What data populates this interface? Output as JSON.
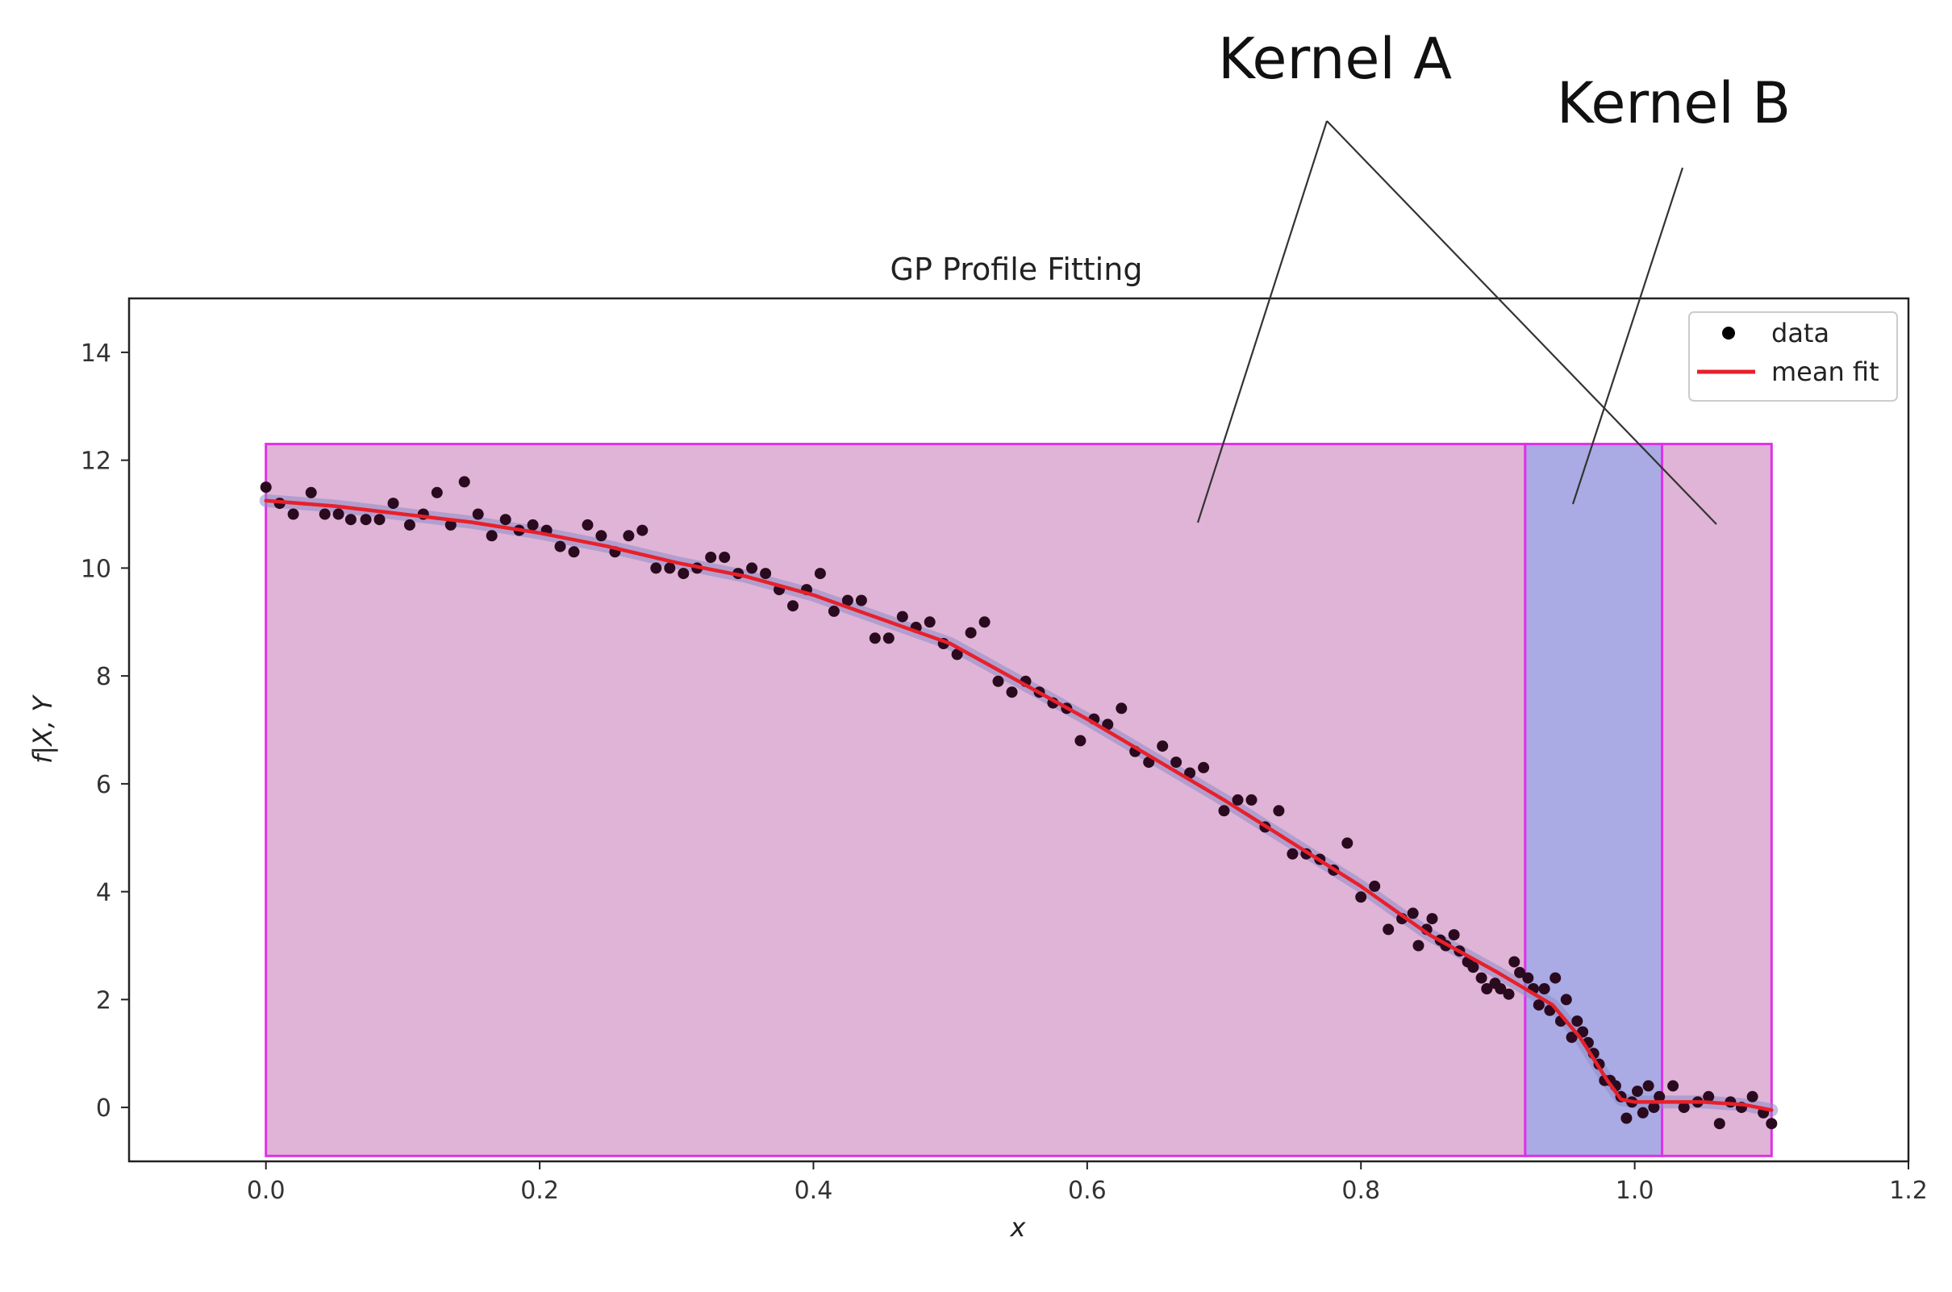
{
  "annotations": [
    {
      "label": "Kernel A"
    },
    {
      "label": "Kernel B"
    }
  ],
  "chart_data": {
    "type": "scatter",
    "title": "GP Profile Fitting",
    "xlabel": "x",
    "ylabel": "f|X, Y",
    "xlim": [
      -0.1,
      1.2
    ],
    "ylim": [
      -1,
      15
    ],
    "xticks": [
      0.0,
      0.2,
      0.4,
      0.6,
      0.8,
      1.0,
      1.2
    ],
    "xtick_labels": [
      "0.0",
      "0.2",
      "0.4",
      "0.6",
      "0.8",
      "1.0",
      "1.2"
    ],
    "yticks": [
      0,
      2,
      4,
      6,
      8,
      10,
      12,
      14
    ],
    "ytick_labels": [
      "0",
      "2",
      "4",
      "6",
      "8",
      "10",
      "12",
      "14"
    ],
    "grid": false,
    "legend_position": "top-right",
    "legend": [
      {
        "label": "data",
        "marker": "dot",
        "color": "#000000"
      },
      {
        "label": "mean fit",
        "marker": "line",
        "color": "#e8202a"
      }
    ],
    "regions": [
      {
        "x0": 0.0,
        "x1": 0.92,
        "y0": -0.9,
        "y1": 12.3,
        "fill": "#e0b4d6",
        "edge": "#e030e8"
      },
      {
        "x0": 0.92,
        "x1": 1.02,
        "y0": -0.9,
        "y1": 12.3,
        "fill": "#aaaae4",
        "edge": "#e030e8"
      },
      {
        "x0": 1.02,
        "x1": 1.1,
        "y0": -0.9,
        "y1": 12.3,
        "fill": "#e0b4d6",
        "edge": "#e030e8"
      }
    ],
    "colors": {
      "data": "#2a0a1e",
      "mean_fit": "#e8202a",
      "band": "#8c8cc8"
    },
    "series": [
      {
        "name": "data",
        "points": [
          [
            0.0,
            11.5
          ],
          [
            0.01,
            11.2
          ],
          [
            0.02,
            11.0
          ],
          [
            0.033,
            11.4
          ],
          [
            0.043,
            11.0
          ],
          [
            0.053,
            11.0
          ],
          [
            0.062,
            10.9
          ],
          [
            0.073,
            10.9
          ],
          [
            0.083,
            10.9
          ],
          [
            0.093,
            11.2
          ],
          [
            0.105,
            10.8
          ],
          [
            0.115,
            11.0
          ],
          [
            0.125,
            11.4
          ],
          [
            0.135,
            10.8
          ],
          [
            0.145,
            11.6
          ],
          [
            0.155,
            11.0
          ],
          [
            0.165,
            10.6
          ],
          [
            0.175,
            10.9
          ],
          [
            0.185,
            10.7
          ],
          [
            0.195,
            10.8
          ],
          [
            0.205,
            10.7
          ],
          [
            0.215,
            10.4
          ],
          [
            0.225,
            10.3
          ],
          [
            0.235,
            10.8
          ],
          [
            0.245,
            10.6
          ],
          [
            0.255,
            10.3
          ],
          [
            0.265,
            10.6
          ],
          [
            0.275,
            10.7
          ],
          [
            0.285,
            10.0
          ],
          [
            0.295,
            10.0
          ],
          [
            0.305,
            9.9
          ],
          [
            0.315,
            10.0
          ],
          [
            0.325,
            10.2
          ],
          [
            0.335,
            10.2
          ],
          [
            0.345,
            9.9
          ],
          [
            0.355,
            10.0
          ],
          [
            0.365,
            9.9
          ],
          [
            0.375,
            9.6
          ],
          [
            0.385,
            9.3
          ],
          [
            0.395,
            9.6
          ],
          [
            0.405,
            9.9
          ],
          [
            0.415,
            9.2
          ],
          [
            0.425,
            9.4
          ],
          [
            0.435,
            9.4
          ],
          [
            0.445,
            8.7
          ],
          [
            0.455,
            8.7
          ],
          [
            0.465,
            9.1
          ],
          [
            0.475,
            8.9
          ],
          [
            0.485,
            9.0
          ],
          [
            0.495,
            8.6
          ],
          [
            0.505,
            8.4
          ],
          [
            0.515,
            8.8
          ],
          [
            0.525,
            9.0
          ],
          [
            0.535,
            7.9
          ],
          [
            0.545,
            7.7
          ],
          [
            0.555,
            7.9
          ],
          [
            0.565,
            7.7
          ],
          [
            0.575,
            7.5
          ],
          [
            0.585,
            7.4
          ],
          [
            0.595,
            6.8
          ],
          [
            0.605,
            7.2
          ],
          [
            0.615,
            7.1
          ],
          [
            0.625,
            7.4
          ],
          [
            0.635,
            6.6
          ],
          [
            0.645,
            6.4
          ],
          [
            0.655,
            6.7
          ],
          [
            0.665,
            6.4
          ],
          [
            0.675,
            6.2
          ],
          [
            0.685,
            6.3
          ],
          [
            0.7,
            5.5
          ],
          [
            0.71,
            5.7
          ],
          [
            0.72,
            5.7
          ],
          [
            0.73,
            5.2
          ],
          [
            0.74,
            5.5
          ],
          [
            0.75,
            4.7
          ],
          [
            0.76,
            4.7
          ],
          [
            0.77,
            4.6
          ],
          [
            0.78,
            4.4
          ],
          [
            0.79,
            4.9
          ],
          [
            0.8,
            3.9
          ],
          [
            0.81,
            4.1
          ],
          [
            0.82,
            3.3
          ],
          [
            0.83,
            3.5
          ],
          [
            0.838,
            3.6
          ],
          [
            0.842,
            3.0
          ],
          [
            0.848,
            3.3
          ],
          [
            0.852,
            3.5
          ],
          [
            0.858,
            3.1
          ],
          [
            0.862,
            3.0
          ],
          [
            0.868,
            3.2
          ],
          [
            0.872,
            2.9
          ],
          [
            0.878,
            2.7
          ],
          [
            0.882,
            2.6
          ],
          [
            0.888,
            2.4
          ],
          [
            0.892,
            2.2
          ],
          [
            0.898,
            2.3
          ],
          [
            0.902,
            2.2
          ],
          [
            0.908,
            2.1
          ],
          [
            0.912,
            2.7
          ],
          [
            0.916,
            2.5
          ],
          [
            0.922,
            2.4
          ],
          [
            0.926,
            2.2
          ],
          [
            0.93,
            1.9
          ],
          [
            0.934,
            2.2
          ],
          [
            0.938,
            1.8
          ],
          [
            0.942,
            2.4
          ],
          [
            0.946,
            1.6
          ],
          [
            0.95,
            2.0
          ],
          [
            0.954,
            1.3
          ],
          [
            0.958,
            1.6
          ],
          [
            0.962,
            1.4
          ],
          [
            0.966,
            1.2
          ],
          [
            0.97,
            1.0
          ],
          [
            0.974,
            0.8
          ],
          [
            0.978,
            0.5
          ],
          [
            0.982,
            0.5
          ],
          [
            0.986,
            0.4
          ],
          [
            0.99,
            0.2
          ],
          [
            0.994,
            -0.2
          ],
          [
            0.998,
            0.1
          ],
          [
            1.002,
            0.3
          ],
          [
            1.006,
            -0.1
          ],
          [
            1.01,
            0.4
          ],
          [
            1.014,
            0.0
          ],
          [
            1.018,
            0.2
          ],
          [
            1.028,
            0.4
          ],
          [
            1.036,
            0.0
          ],
          [
            1.046,
            0.1
          ],
          [
            1.054,
            0.2
          ],
          [
            1.062,
            -0.3
          ],
          [
            1.07,
            0.1
          ],
          [
            1.078,
            0.0
          ],
          [
            1.086,
            0.2
          ],
          [
            1.094,
            -0.1
          ],
          [
            1.1,
            -0.3
          ]
        ]
      },
      {
        "name": "mean fit",
        "x": [
          0.0,
          0.05,
          0.1,
          0.15,
          0.2,
          0.25,
          0.3,
          0.35,
          0.4,
          0.45,
          0.5,
          0.55,
          0.6,
          0.65,
          0.7,
          0.75,
          0.8,
          0.85,
          0.9,
          0.92,
          0.94,
          0.96,
          0.98,
          0.99,
          1.0,
          1.02,
          1.05,
          1.08,
          1.1
        ],
        "y": [
          11.25,
          11.15,
          11.0,
          10.85,
          10.65,
          10.4,
          10.1,
          9.85,
          9.5,
          9.05,
          8.6,
          7.9,
          7.2,
          6.45,
          5.7,
          4.9,
          4.1,
          3.2,
          2.5,
          2.2,
          1.9,
          1.3,
          0.5,
          0.15,
          0.1,
          0.1,
          0.1,
          0.05,
          -0.05
        ]
      }
    ]
  }
}
